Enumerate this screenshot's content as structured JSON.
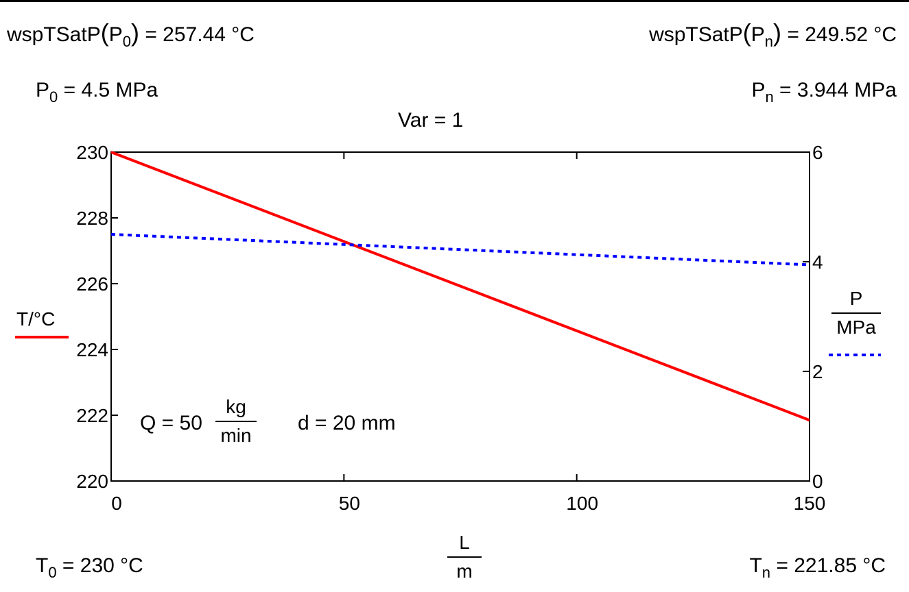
{
  "header": {
    "tsat0": {
      "fn": "wspTSatP",
      "arg": "P",
      "sub": "0",
      "value": "= 257.44 °C"
    },
    "tsatn": {
      "fn": "wspTSatP",
      "arg": "P",
      "sub": "n",
      "value": "= 249.52 °C"
    },
    "p0": {
      "name": "P",
      "sub": "0",
      "value": "= 4.5 MPa"
    },
    "pn": {
      "name": "P",
      "sub": "n",
      "value": "= 3.944 MPa"
    },
    "var": "Var = 1"
  },
  "footer": {
    "t0": {
      "name": "T",
      "sub": "0",
      "value": "= 230 °C"
    },
    "tn": {
      "name": "T",
      "sub": "n",
      "value": "= 221.85 °C"
    }
  },
  "annotations": {
    "q_prefix": "Q = 50",
    "q_num": "kg",
    "q_den": "min",
    "d": "d = 20 mm"
  },
  "chart_data": {
    "type": "line",
    "x": [
      0,
      150
    ],
    "xlim": [
      0,
      150
    ],
    "xticks": [
      "0",
      "50",
      "100",
      "150"
    ],
    "xlabel": {
      "num": "L",
      "den": "m"
    },
    "y_left": {
      "label": "T/°C",
      "lim": [
        220,
        230
      ],
      "ticks": [
        "220",
        "222",
        "224",
        "226",
        "228",
        "230"
      ]
    },
    "y_right": {
      "label": {
        "num": "P",
        "den": "MPa"
      },
      "lim": [
        0,
        6
      ],
      "ticks": [
        "0",
        "2",
        "4",
        "6"
      ]
    },
    "series": [
      {
        "axis": "left",
        "color": "#ff0000",
        "style": "solid",
        "x": [
          0,
          150
        ],
        "values": [
          230,
          221.85
        ]
      },
      {
        "axis": "right",
        "color": "#0000ff",
        "style": "dotted",
        "x": [
          0,
          150
        ],
        "values": [
          4.5,
          3.944
        ]
      }
    ],
    "grid": false
  }
}
